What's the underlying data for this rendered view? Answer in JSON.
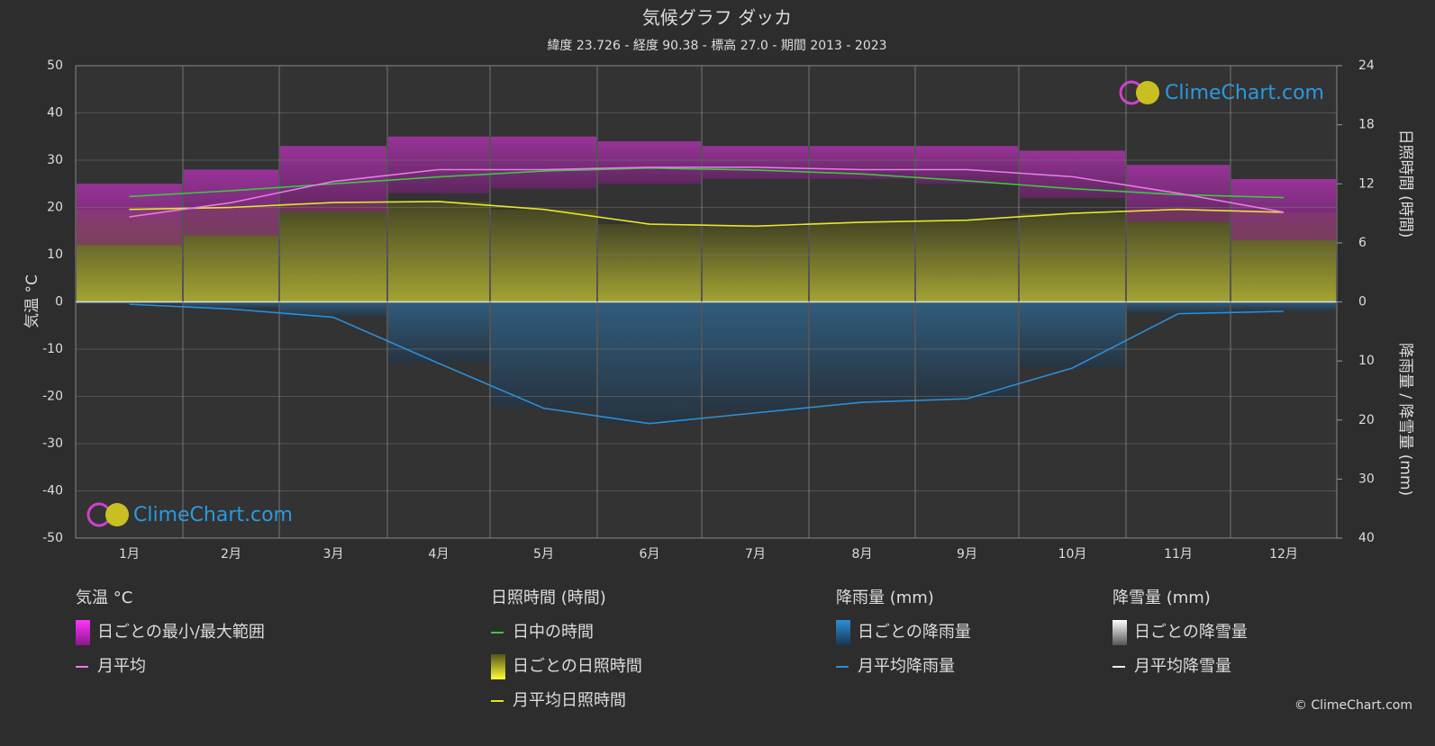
{
  "chart_data": {
    "type": "climate",
    "title": "気候グラフ ダッカ",
    "subtitle": "緯度 23.726 - 経度 90.38 - 標高 27.0 - 期間 2013 - 2023",
    "y_label": "気温 °C",
    "y2_label_top": "日照時間 (時間)",
    "y2_label_bottom": "降雨量 / 降雪量 (mm)",
    "categories": [
      "1月",
      "2月",
      "3月",
      "4月",
      "5月",
      "6月",
      "7月",
      "8月",
      "9月",
      "10月",
      "11月",
      "12月"
    ],
    "ylim": [
      -50,
      50
    ],
    "yticks": [
      -50,
      -40,
      -30,
      -20,
      -10,
      0,
      10,
      20,
      30,
      40,
      50
    ],
    "hours_lim": [
      0,
      24
    ],
    "hours_ticks": [
      0,
      6,
      12,
      18,
      24
    ],
    "rain_lim": [
      0,
      40
    ],
    "rain_ticks": [
      0,
      10,
      20,
      30,
      40
    ],
    "temp_min": [
      12,
      14,
      19,
      23,
      24,
      25,
      26,
      26,
      25,
      22,
      17,
      13
    ],
    "temp_max": [
      25,
      28,
      33,
      35,
      35,
      34,
      33,
      33,
      33,
      32,
      29,
      26
    ],
    "series": [
      {
        "name": "月平均",
        "color": "#e87ce8",
        "axis": "y",
        "values": [
          18,
          21,
          25.5,
          28,
          28,
          28.5,
          28.5,
          28,
          28,
          26.5,
          23,
          19
        ]
      },
      {
        "name": "日中の時間",
        "color": "#3cc83c",
        "axis": "hours",
        "values": [
          10.7,
          11.3,
          12,
          12.7,
          13.3,
          13.6,
          13.4,
          13,
          12.3,
          11.5,
          10.9,
          10.6
        ]
      },
      {
        "name": "月平均日照時間",
        "color": "#e6e62a",
        "axis": "hours",
        "values": [
          9.4,
          9.6,
          10.1,
          10.2,
          9.4,
          7.9,
          7.7,
          8.1,
          8.3,
          9.0,
          9.4,
          9.1
        ]
      },
      {
        "name": "月平均降雨量",
        "color": "#2b8fd8",
        "axis": "rain",
        "values": [
          0.4,
          1.2,
          2.6,
          10.4,
          18,
          20.6,
          18.8,
          17,
          16.4,
          11.2,
          2,
          1.6
        ]
      }
    ],
    "legend": {
      "groups": [
        {
          "title": "気温 °C",
          "items": [
            "日ごとの最小/最大範囲",
            "月平均"
          ]
        },
        {
          "title": "日照時間 (時間)",
          "items": [
            "日中の時間",
            "日ごとの日照時間",
            "月平均日照時間"
          ]
        },
        {
          "title": "降雨量 (mm)",
          "items": [
            "日ごとの降雨量",
            "月平均降雨量"
          ]
        },
        {
          "title": "降雪量 (mm)",
          "items": [
            "日ごとの降雪量",
            "月平均降雪量"
          ]
        }
      ]
    },
    "watermark": "ClimeChart.com",
    "copyright": "© ClimeChart.com"
  }
}
